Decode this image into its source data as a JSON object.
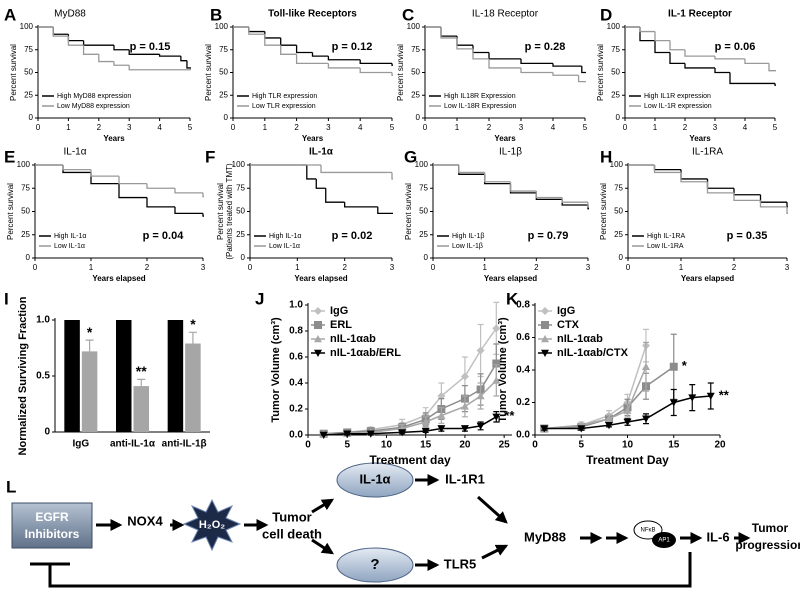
{
  "chart_data": [
    {
      "panel": "A",
      "type": "line",
      "step": true,
      "title": "MyD88",
      "annotation": "p = 0.15",
      "xlabel": "Years",
      "ylabel": "Percent survival",
      "xlim": [
        0,
        5
      ],
      "ylim": [
        0,
        100
      ],
      "xticks": [
        0,
        1,
        2,
        3,
        4,
        5
      ],
      "yticks": [
        0,
        25,
        50,
        75,
        100
      ],
      "legend": "lower left",
      "series": [
        {
          "name": "High MyD88 expression",
          "color": "#000000",
          "x": [
            0,
            0.5,
            1,
            1.5,
            2.5,
            3,
            4,
            4.7,
            4.9,
            5
          ],
          "values": [
            100,
            92,
            85,
            80,
            75,
            70,
            68,
            63,
            55,
            55
          ]
        },
        {
          "name": "Low MyD88 expression",
          "color": "#999999",
          "x": [
            0,
            0.5,
            1,
            1.5,
            2,
            2.5,
            3,
            5
          ],
          "values": [
            100,
            90,
            80,
            70,
            62,
            58,
            53,
            53
          ]
        }
      ]
    },
    {
      "panel": "B",
      "type": "line",
      "step": true,
      "title": "Toll-like Receptors",
      "annotation": "p = 0.12",
      "xlabel": "Years",
      "ylabel": "Percent survival",
      "xlim": [
        0,
        5
      ],
      "ylim": [
        0,
        100
      ],
      "xticks": [
        0,
        1,
        2,
        3,
        4,
        5
      ],
      "yticks": [
        0,
        25,
        50,
        75,
        100
      ],
      "legend": "lower left",
      "series": [
        {
          "name": "High TLR expression",
          "color": "#000000",
          "x": [
            0,
            0.5,
            1,
            1.5,
            2,
            2.5,
            3,
            4,
            5
          ],
          "values": [
            100,
            95,
            88,
            80,
            72,
            68,
            64,
            60,
            58
          ]
        },
        {
          "name": "Low TLR expression",
          "color": "#999999",
          "x": [
            0,
            0.5,
            1,
            1.5,
            2,
            3,
            4,
            5
          ],
          "values": [
            100,
            92,
            80,
            70,
            60,
            55,
            50,
            47
          ]
        }
      ]
    },
    {
      "panel": "C",
      "type": "line",
      "step": true,
      "title": "IL-18 Receptor",
      "annotation": "p = 0.28",
      "xlabel": "Years",
      "ylabel": "Percent survival",
      "xlim": [
        0,
        5
      ],
      "ylim": [
        0,
        100
      ],
      "xticks": [
        0,
        1,
        2,
        3,
        4,
        5
      ],
      "yticks": [
        0,
        25,
        50,
        75,
        100
      ],
      "legend": "lower left",
      "series": [
        {
          "name": "High IL18R Expression",
          "color": "#000000",
          "x": [
            0,
            0.5,
            1,
            1.5,
            2,
            3,
            4,
            4.9,
            5
          ],
          "values": [
            100,
            90,
            80,
            72,
            65,
            60,
            57,
            50,
            50
          ]
        },
        {
          "name": "Low IL-18R Expression",
          "color": "#999999",
          "x": [
            0,
            0.5,
            1,
            1.5,
            2,
            3,
            4,
            4.8,
            5
          ],
          "values": [
            100,
            88,
            76,
            65,
            55,
            50,
            47,
            40,
            40
          ]
        }
      ]
    },
    {
      "panel": "D",
      "type": "line",
      "step": true,
      "title": "IL-1 Receptor",
      "annotation": "p = 0.06",
      "xlabel": "Years",
      "ylabel": "Percent survival",
      "xlim": [
        0,
        5
      ],
      "ylim": [
        0,
        100
      ],
      "xticks": [
        0,
        1,
        2,
        3,
        4,
        5
      ],
      "yticks": [
        0,
        25,
        50,
        75,
        100
      ],
      "legend": "lower left",
      "series": [
        {
          "name": "High IL1R expression",
          "color": "#000000",
          "x": [
            0,
            0.5,
            1,
            1.5,
            2,
            3,
            3.5,
            5
          ],
          "values": [
            100,
            85,
            72,
            60,
            55,
            50,
            38,
            36
          ]
        },
        {
          "name": "Low IL-1R expression",
          "color": "#999999",
          "x": [
            0,
            0.5,
            1,
            1.5,
            2,
            3,
            4,
            4.8,
            5
          ],
          "values": [
            100,
            95,
            85,
            75,
            68,
            65,
            60,
            52,
            52
          ]
        }
      ]
    },
    {
      "panel": "E",
      "type": "line",
      "step": true,
      "title": "IL-1α",
      "annotation": "p = 0.04",
      "xlabel": "Years elapsed",
      "ylabel": "Percent survival",
      "xlim": [
        0,
        3
      ],
      "ylim": [
        0,
        100
      ],
      "xticks": [
        0,
        1,
        2,
        3
      ],
      "yticks": [
        0,
        25,
        50,
        75,
        100
      ],
      "legend": "lower left",
      "series": [
        {
          "name": "High IL-1α",
          "color": "#000000",
          "x": [
            0,
            0.5,
            1,
            1.5,
            2,
            2.5,
            3
          ],
          "values": [
            100,
            92,
            80,
            65,
            55,
            48,
            45
          ]
        },
        {
          "name": "Low IL-1α",
          "color": "#999999",
          "x": [
            0,
            0.5,
            1,
            1.5,
            2,
            2.5,
            3
          ],
          "values": [
            100,
            95,
            88,
            80,
            75,
            70,
            66
          ]
        }
      ]
    },
    {
      "panel": "F",
      "type": "line",
      "step": true,
      "title": "IL-1α",
      "annotation": "p = 0.02",
      "xlabel": "Years elapsed",
      "ylabel": [
        "Percent survival",
        "(Patients treated with TMT)"
      ],
      "xlim": [
        0,
        3
      ],
      "ylim": [
        0,
        100
      ],
      "xticks": [
        0,
        1,
        2,
        3
      ],
      "yticks": [
        0,
        25,
        50,
        75,
        100
      ],
      "legend": "lower left",
      "series": [
        {
          "name": "High IL-1α",
          "color": "#000000",
          "x": [
            0,
            1.1,
            1.2,
            1.4,
            1.6,
            2,
            2.7,
            3
          ],
          "values": [
            100,
            100,
            85,
            75,
            60,
            55,
            48,
            48
          ]
        },
        {
          "name": "Low IL-1α",
          "color": "#999999",
          "x": [
            0,
            1.3,
            1.5,
            2.9,
            3
          ],
          "values": [
            100,
            100,
            92,
            92,
            85
          ]
        }
      ]
    },
    {
      "panel": "G",
      "type": "line",
      "step": true,
      "title": "IL-1β",
      "annotation": "p = 0.79",
      "xlabel": "Years elapsed",
      "ylabel": "Percent survival",
      "xlim": [
        0,
        3
      ],
      "ylim": [
        0,
        100
      ],
      "xticks": [
        0,
        1,
        2,
        3
      ],
      "yticks": [
        0,
        25,
        50,
        75,
        100
      ],
      "legend": "lower left",
      "series": [
        {
          "name": "High IL-1β",
          "color": "#000000",
          "x": [
            0,
            0.5,
            1,
            1.5,
            2,
            2.5,
            3
          ],
          "values": [
            100,
            90,
            80,
            70,
            63,
            57,
            53
          ]
        },
        {
          "name": "Low IL-1β",
          "color": "#999999",
          "x": [
            0,
            0.5,
            1,
            1.5,
            2,
            2.5,
            3
          ],
          "values": [
            100,
            92,
            82,
            72,
            65,
            60,
            55
          ]
        }
      ]
    },
    {
      "panel": "H",
      "type": "line",
      "step": true,
      "title": "IL-1RA",
      "annotation": "p = 0.35",
      "xlabel": "Years elapsed",
      "ylabel": "Percent survival",
      "xlim": [
        0,
        3
      ],
      "ylim": [
        0,
        100
      ],
      "xticks": [
        0,
        1,
        2,
        3
      ],
      "yticks": [
        0,
        25,
        50,
        75,
        100
      ],
      "legend": "lower left",
      "series": [
        {
          "name": "High IL-1RA",
          "color": "#000000",
          "x": [
            0,
            0.5,
            1,
            1.5,
            2,
            2.5,
            3
          ],
          "values": [
            100,
            95,
            85,
            75,
            68,
            60,
            55
          ]
        },
        {
          "name": "Low IL-1RA",
          "color": "#999999",
          "x": [
            0,
            0.5,
            1,
            1.5,
            2,
            2.5,
            3
          ],
          "values": [
            100,
            92,
            82,
            70,
            62,
            55,
            48
          ]
        }
      ]
    },
    {
      "panel": "I",
      "type": "bar",
      "ylabel": "Normalized Surviving Fraction",
      "categories": [
        "IgG",
        "anti-IL-1α",
        "anti-IL-1β"
      ],
      "ylim": [
        0,
        1
      ],
      "yticks": [
        0,
        0.5,
        {
          "value": 1,
          "label": "1.0"
        }
      ],
      "series": [
        {
          "color": "#000000",
          "values": [
            1,
            1,
            1
          ]
        },
        {
          "color": "#a6a6a6",
          "values": [
            0.72,
            0.41,
            0.79
          ],
          "errors": [
            0.1,
            0.06,
            0.1
          ],
          "annotations": [
            "*",
            "**",
            "*"
          ]
        }
      ]
    },
    {
      "panel": "J",
      "type": "line",
      "xlabel": "Treatment day",
      "ylabel": "Tumor Volume (cm³)",
      "xlim": [
        0,
        26
      ],
      "ylim": [
        0,
        1
      ],
      "xticks": [
        0,
        5,
        10,
        15,
        20,
        25
      ],
      "yticks": [
        {
          "value": 0,
          "label": "0.0"
        },
        0.2,
        0.4,
        0.6,
        0.8,
        {
          "value": 1,
          "label": "1.0"
        }
      ],
      "legend": "upper left",
      "series": [
        {
          "name": "IgG",
          "color": "#c0c0c0",
          "x": [
            2,
            5,
            8,
            12,
            15,
            17,
            20,
            22,
            24
          ],
          "values": [
            0.01,
            0.02,
            0.04,
            0.08,
            0.15,
            0.3,
            0.45,
            0.65,
            0.82
          ],
          "errors": [
            0.01,
            0.01,
            0.02,
            0.04,
            0.06,
            0.1,
            0.15,
            0.2,
            0.2
          ]
        },
        {
          "name": "ERL",
          "color": "#8c8c8c",
          "x": [
            2,
            5,
            8,
            12,
            15,
            17,
            20,
            22,
            24
          ],
          "values": [
            0.01,
            0.02,
            0.03,
            0.06,
            0.12,
            0.2,
            0.28,
            0.35,
            0.55
          ],
          "errors": [
            0.01,
            0.01,
            0.02,
            0.03,
            0.05,
            0.08,
            0.1,
            0.12,
            0.15
          ]
        },
        {
          "name": "nIL-1αab",
          "color": "#a8a8a8",
          "x": [
            2,
            5,
            8,
            12,
            15,
            17,
            20,
            22,
            24
          ],
          "values": [
            0.01,
            0.01,
            0.02,
            0.05,
            0.1,
            0.15,
            0.22,
            0.3,
            0.42
          ],
          "errors": [
            0.01,
            0.01,
            0.01,
            0.03,
            0.04,
            0.06,
            0.08,
            0.1,
            0.12
          ]
        },
        {
          "name": "nIL-1αab/ERL",
          "color": "#000000",
          "x": [
            2,
            5,
            8,
            12,
            15,
            17,
            20,
            22,
            24
          ],
          "values": [
            0,
            0.01,
            0.01,
            0.02,
            0.03,
            0.05,
            0.05,
            0.07,
            0.14
          ],
          "errors": [
            0,
            0.01,
            0.01,
            0.01,
            0.01,
            0.02,
            0.02,
            0.03,
            0.04
          ],
          "annotation": "**"
        }
      ]
    },
    {
      "panel": "K",
      "type": "line",
      "xlabel": "Treatment Day",
      "ylabel": "Tumor Volume (cm³)",
      "xlim": [
        0,
        20
      ],
      "ylim": [
        0,
        0.8
      ],
      "xticks": [
        0,
        5,
        10,
        15,
        20
      ],
      "yticks": [
        {
          "value": 0,
          "label": "0.0"
        },
        0.2,
        0.4,
        0.6,
        0.8
      ],
      "legend": "upper left",
      "series": [
        {
          "name": "IgG",
          "color": "#c0c0c0",
          "x": [
            1,
            5,
            8,
            10,
            12
          ],
          "values": [
            0.04,
            0.06,
            0.12,
            0.2,
            0.55
          ],
          "errors": [
            0.01,
            0.02,
            0.03,
            0.05,
            0.1
          ]
        },
        {
          "name": "CTX",
          "color": "#8c8c8c",
          "x": [
            1,
            5,
            8,
            10,
            12,
            15
          ],
          "values": [
            0.04,
            0.05,
            0.1,
            0.17,
            0.3,
            0.42
          ],
          "errors": [
            0.01,
            0.01,
            0.02,
            0.05,
            0.08,
            0.2
          ],
          "annotation": "*"
        },
        {
          "name": "nIL-1αab",
          "color": "#a8a8a8",
          "x": [
            1,
            5,
            8,
            10,
            12
          ],
          "values": [
            0.04,
            0.06,
            0.1,
            0.15,
            0.42
          ],
          "errors": [
            0.01,
            0.01,
            0.02,
            0.04,
            0.15
          ]
        },
        {
          "name": "nIL-1αab/CTX",
          "color": "#000000",
          "x": [
            1,
            5,
            8,
            10,
            12,
            15,
            17,
            19
          ],
          "values": [
            0.04,
            0.04,
            0.06,
            0.08,
            0.1,
            0.2,
            0.23,
            0.24
          ],
          "errors": [
            0.01,
            0.01,
            0.01,
            0.02,
            0.03,
            0.08,
            0.08,
            0.08
          ],
          "annotation": "**"
        }
      ]
    }
  ],
  "diagram": {
    "panel": "L",
    "nodes": [
      {
        "lines": [
          "EGFR",
          "Inhibitors"
        ]
      },
      {
        "label": "NOX4"
      },
      {
        "label": "H₂O₂"
      },
      {
        "lines": [
          "Tumor",
          "cell death"
        ]
      },
      {
        "label": "IL-1α"
      },
      {
        "label": "?"
      },
      {
        "label": "IL-1R1"
      },
      {
        "label": "TLR5"
      },
      {
        "label": "MyD88"
      },
      {
        "label": "NFκB"
      },
      {
        "label": "AP1"
      },
      {
        "label": "IL-6"
      },
      {
        "lines": [
          "Tumor",
          "progression"
        ]
      }
    ]
  }
}
